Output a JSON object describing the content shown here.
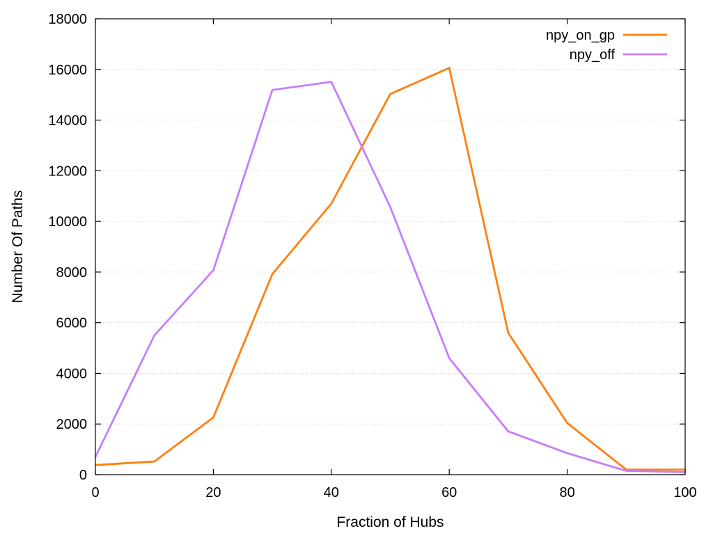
{
  "chart_data": {
    "type": "line",
    "title": "",
    "xlabel": "Fraction of Hubs",
    "ylabel": "Number Of Paths",
    "xlim": [
      0,
      100
    ],
    "ylim": [
      0,
      18000
    ],
    "xticks": [
      0,
      20,
      40,
      60,
      80,
      100
    ],
    "yticks": [
      0,
      2000,
      4000,
      6000,
      8000,
      10000,
      12000,
      14000,
      16000,
      18000
    ],
    "grid": true,
    "legend_position": "top-right",
    "x": [
      0,
      10,
      20,
      30,
      40,
      50,
      60,
      70,
      80,
      90,
      100
    ],
    "series": [
      {
        "name": "npy_on_gp",
        "color": "#ff7f0e",
        "values": [
          380,
          520,
          2260,
          7920,
          10700,
          15030,
          16060,
          5600,
          2040,
          200,
          200
        ]
      },
      {
        "name": "npy_off",
        "color": "#c77cff",
        "values": [
          700,
          5500,
          8070,
          15190,
          15510,
          10570,
          4600,
          1710,
          850,
          150,
          100
        ]
      }
    ]
  }
}
